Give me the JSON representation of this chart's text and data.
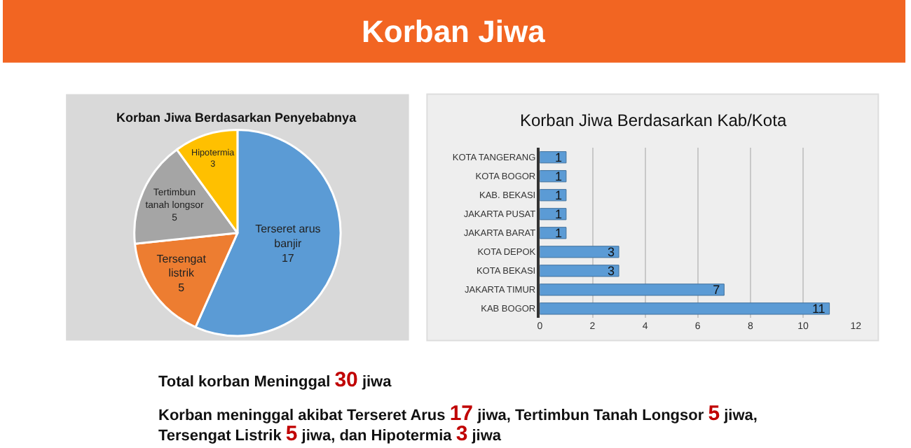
{
  "chart_data": [
    {
      "type": "other",
      "title": "Korban Jiwa",
      "color": "#f26522",
      "annotations": [
        "Total korban Meninggal 30 jiwa",
        "Korban meninggal akibat Terseret Arus 17 jiwa, Tertimbun Tanah Longsor 5 jiwa, Tersengat Listrik 5 jiwa, dan Hipotermia 3 jiwa"
      ]
    },
    {
      "type": "pie",
      "title": "Korban Jiwa Berdasarkan Penyebabnya",
      "categories": [
        "Terseret arus banjir",
        "Tersengat listrik",
        "Tertimbun tanah longsor",
        "Hipotermia"
      ],
      "values": [
        17,
        5,
        5,
        3
      ],
      "colors": [
        "#5b9bd5",
        "#ed7d31",
        "#a5a5a5",
        "#ffc000"
      ],
      "data_labels": true
    },
    {
      "type": "bar",
      "orientation": "horizontal",
      "title": "Korban Jiwa Berdasarkan Kab/Kota",
      "categories": [
        "KOTA TANGERANG",
        "KOTA BOGOR",
        "KAB. BEKASI",
        "JAKARTA PUSAT",
        "JAKARTA BARAT",
        "KOTA DEPOK",
        "KOTA BEKASI",
        "JAKARTA TIMUR",
        "KAB BOGOR"
      ],
      "values": [
        1,
        1,
        1,
        1,
        1,
        3,
        3,
        7,
        11
      ],
      "color": "#5b9bd5",
      "xlim": [
        0,
        12
      ],
      "xticks": [
        0,
        2,
        4,
        6,
        8,
        10,
        12
      ],
      "grid": "x",
      "data_labels": true
    }
  ]
}
